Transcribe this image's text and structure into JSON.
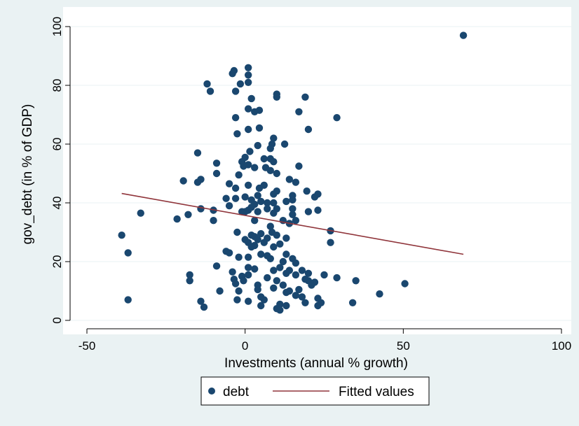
{
  "chart_data": {
    "type": "scatter",
    "title": "",
    "xlabel": "Investments (annual % growth)",
    "ylabel": "gov_debt (in % of GDP)",
    "xlim": [
      -50,
      100
    ],
    "ylim": [
      0,
      100
    ],
    "xticks": [
      -50,
      0,
      50,
      100
    ],
    "yticks": [
      0,
      20,
      40,
      60,
      80,
      100
    ],
    "grid": "horizontal",
    "legend_position": "bottom",
    "legend": [
      "debt",
      "Fitted values"
    ],
    "colors": {
      "points": "#1a476f",
      "fit": "#90353b",
      "plot_bg": "#ffffff",
      "outer_bg": "#eaf2f3",
      "grid": "#eaf2f3"
    },
    "series": [
      {
        "name": "debt",
        "kind": "scatter",
        "points": [
          [
            69,
            97
          ],
          [
            1,
            86
          ],
          [
            -3.5,
            85
          ],
          [
            -4,
            84
          ],
          [
            1,
            83.5
          ],
          [
            1,
            81
          ],
          [
            -12,
            80.5
          ],
          [
            -1.5,
            80.5
          ],
          [
            -11,
            78
          ],
          [
            -3,
            78
          ],
          [
            10,
            77
          ],
          [
            10,
            76
          ],
          [
            19,
            76
          ],
          [
            2,
            75.5
          ],
          [
            1,
            72
          ],
          [
            4.5,
            71.5
          ],
          [
            3,
            71
          ],
          [
            17,
            71
          ],
          [
            -3,
            69
          ],
          [
            29,
            69
          ],
          [
            1,
            65
          ],
          [
            4.5,
            65.5
          ],
          [
            20,
            65
          ],
          [
            -2.5,
            63.5
          ],
          [
            9,
            62
          ],
          [
            8.5,
            60
          ],
          [
            12.5,
            60
          ],
          [
            4,
            59.5
          ],
          [
            8,
            58.5
          ],
          [
            1.5,
            57.5
          ],
          [
            -15,
            57
          ],
          [
            0,
            55.5
          ],
          [
            6,
            55
          ],
          [
            8,
            55
          ],
          [
            9,
            54
          ],
          [
            -1,
            54
          ],
          [
            -9,
            53.5
          ],
          [
            1,
            53
          ],
          [
            -0.5,
            52.5
          ],
          [
            3,
            52
          ],
          [
            6.5,
            52
          ],
          [
            17,
            52.5
          ],
          [
            8,
            51
          ],
          [
            10,
            50
          ],
          [
            -9,
            50
          ],
          [
            -2,
            49.5
          ],
          [
            -14,
            48
          ],
          [
            14,
            48
          ],
          [
            -15,
            47
          ],
          [
            -19.5,
            47.5
          ],
          [
            -5,
            46.5
          ],
          [
            16,
            47
          ],
          [
            6,
            46
          ],
          [
            1,
            46
          ],
          [
            4.5,
            45
          ],
          [
            -3,
            45
          ],
          [
            10,
            44
          ],
          [
            19.5,
            44
          ],
          [
            9,
            43
          ],
          [
            23,
            43
          ],
          [
            0,
            42
          ],
          [
            4,
            42.5
          ],
          [
            15,
            42.5
          ],
          [
            22,
            42
          ],
          [
            -6,
            41.5
          ],
          [
            -3,
            41.5
          ],
          [
            2,
            41
          ],
          [
            5,
            40.5
          ],
          [
            7,
            40
          ],
          [
            9,
            40
          ],
          [
            13,
            40.5
          ],
          [
            15,
            41
          ],
          [
            3,
            39.5
          ],
          [
            -5,
            39
          ],
          [
            2,
            38.5
          ],
          [
            7,
            38
          ],
          [
            10,
            38
          ],
          [
            15,
            38
          ],
          [
            1,
            37.5
          ],
          [
            -1,
            37
          ],
          [
            0,
            37
          ],
          [
            4,
            37
          ],
          [
            9,
            36.5
          ],
          [
            15,
            36
          ],
          [
            20,
            37
          ],
          [
            23,
            37.5
          ],
          [
            -14,
            38
          ],
          [
            -10,
            37.5
          ],
          [
            -33,
            36.5
          ],
          [
            -18,
            36
          ],
          [
            -21.5,
            34.5
          ],
          [
            -10,
            34
          ],
          [
            3,
            34
          ],
          [
            12,
            34
          ],
          [
            16,
            34
          ],
          [
            8,
            32
          ],
          [
            14,
            33
          ],
          [
            8.5,
            30
          ],
          [
            -2.5,
            30
          ],
          [
            5,
            29.5
          ],
          [
            10,
            29
          ],
          [
            27,
            30.5
          ],
          [
            -39,
            29
          ],
          [
            2,
            29
          ],
          [
            3,
            28.5
          ],
          [
            7,
            28
          ],
          [
            0,
            27.5
          ],
          [
            4,
            27.5
          ],
          [
            13,
            28
          ],
          [
            6,
            26.5
          ],
          [
            1,
            26.5
          ],
          [
            3,
            25.5
          ],
          [
            9,
            25
          ],
          [
            2,
            25
          ],
          [
            11,
            26
          ],
          [
            27,
            26.5
          ],
          [
            -6,
            23.5
          ],
          [
            -5,
            23
          ],
          [
            -37,
            23
          ],
          [
            5,
            22.5
          ],
          [
            7,
            22
          ],
          [
            13,
            22.5
          ],
          [
            -2,
            21.5
          ],
          [
            1,
            21.5
          ],
          [
            8,
            21
          ],
          [
            15,
            21
          ],
          [
            12,
            20
          ],
          [
            16,
            19.5
          ],
          [
            -9,
            18.5
          ],
          [
            1,
            18
          ],
          [
            3,
            17.5
          ],
          [
            9,
            17
          ],
          [
            14,
            17
          ],
          [
            18,
            17
          ],
          [
            11,
            18
          ],
          [
            -4,
            16.5
          ],
          [
            13,
            16
          ],
          [
            16,
            15.5
          ],
          [
            20,
            16
          ],
          [
            25,
            15.5
          ],
          [
            -17.5,
            15.5
          ],
          [
            -1,
            15
          ],
          [
            -3.5,
            14
          ],
          [
            -0.5,
            13.5
          ],
          [
            1,
            15.5
          ],
          [
            7,
            14.5
          ],
          [
            10,
            13.5
          ],
          [
            19,
            14
          ],
          [
            22,
            13
          ],
          [
            29,
            14.5
          ],
          [
            20,
            13.5
          ],
          [
            35,
            13.5
          ],
          [
            -17.5,
            13.5
          ],
          [
            -3,
            12.5
          ],
          [
            4,
            12
          ],
          [
            12,
            12
          ],
          [
            50.5,
            12.5
          ],
          [
            9,
            11
          ],
          [
            21,
            12
          ],
          [
            -2,
            10
          ],
          [
            -8,
            10
          ],
          [
            4,
            10.5
          ],
          [
            14,
            10
          ],
          [
            17,
            10.5
          ],
          [
            13,
            9.5
          ],
          [
            42.5,
            9
          ],
          [
            5,
            8
          ],
          [
            16,
            8.5
          ],
          [
            6,
            7
          ],
          [
            18,
            8
          ],
          [
            23,
            7.5
          ],
          [
            -37,
            7
          ],
          [
            -2.5,
            7
          ],
          [
            1,
            6.5
          ],
          [
            19,
            6
          ],
          [
            -14,
            6.5
          ],
          [
            24,
            6
          ],
          [
            34,
            6
          ],
          [
            11,
            5.5
          ],
          [
            5,
            5
          ],
          [
            13,
            5
          ],
          [
            23,
            5
          ],
          [
            10,
            4
          ],
          [
            -13,
            4.5
          ],
          [
            11,
            3.5
          ]
        ]
      },
      {
        "name": "Fitted values",
        "kind": "line",
        "points": [
          [
            -39,
            43.2
          ],
          [
            69,
            22.5
          ]
        ]
      }
    ]
  }
}
